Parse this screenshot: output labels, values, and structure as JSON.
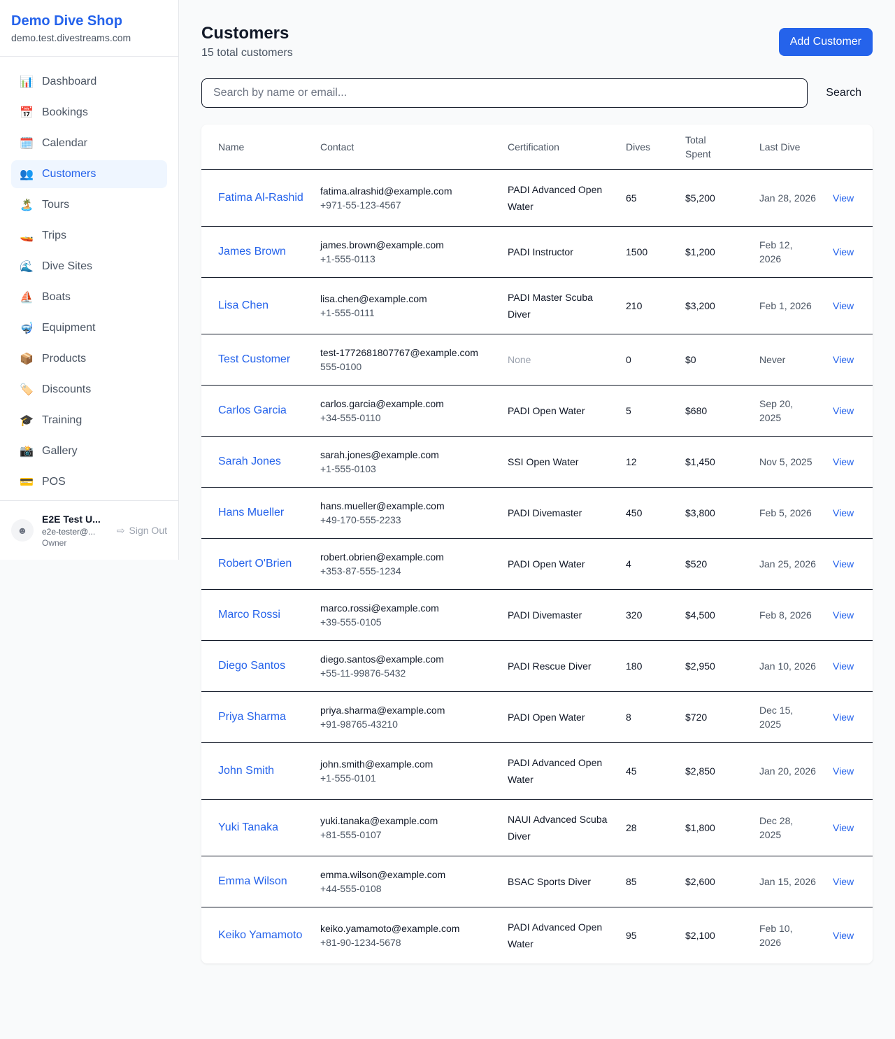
{
  "sidebar": {
    "brand": "Demo Dive Shop",
    "domain": "demo.test.divestreams.com",
    "items": [
      {
        "label": "Dashboard",
        "icon": "📊"
      },
      {
        "label": "Bookings",
        "icon": "📅"
      },
      {
        "label": "Calendar",
        "icon": "🗓️"
      },
      {
        "label": "Customers",
        "icon": "👥",
        "active": true
      },
      {
        "label": "Tours",
        "icon": "🏝️"
      },
      {
        "label": "Trips",
        "icon": "🚤"
      },
      {
        "label": "Dive Sites",
        "icon": "🌊"
      },
      {
        "label": "Boats",
        "icon": "⛵"
      },
      {
        "label": "Equipment",
        "icon": "🤿"
      },
      {
        "label": "Products",
        "icon": "📦"
      },
      {
        "label": "Discounts",
        "icon": "🏷️"
      },
      {
        "label": "Training",
        "icon": "🎓"
      },
      {
        "label": "Gallery",
        "icon": "📸"
      },
      {
        "label": "POS",
        "icon": "💳"
      }
    ],
    "user": {
      "name": "E2E Test U...",
      "email": "e2e-tester@...",
      "role": "Owner",
      "sign_out": "Sign Out"
    }
  },
  "header": {
    "title": "Customers",
    "subtitle": "15 total customers",
    "add_label": "Add Customer"
  },
  "search": {
    "placeholder": "Search by name or email...",
    "button": "Search"
  },
  "table": {
    "columns": [
      "Name",
      "Contact",
      "Certification",
      "Dives",
      "Total Spent",
      "Last Dive",
      ""
    ],
    "rows": [
      [
        "Fatima Al-Rashid",
        "fatima.alrashid@example.com",
        "+971-55-123-4567",
        "PADI Advanced Open Water",
        "65",
        "$5,200",
        "Jan 28, 2026"
      ],
      [
        "James Brown",
        "james.brown@example.com",
        "+1-555-0113",
        "PADI Instructor",
        "1500",
        "$1,200",
        "Feb 12, 2026"
      ],
      [
        "Lisa Chen",
        "lisa.chen@example.com",
        "+1-555-0111",
        "PADI Master Scuba Diver",
        "210",
        "$3,200",
        "Feb 1, 2026"
      ],
      [
        "Test Customer",
        "test-1772681807767@example.com",
        "555-0100",
        "None",
        "0",
        "$0",
        "Never"
      ],
      [
        "Carlos Garcia",
        "carlos.garcia@example.com",
        "+34-555-0110",
        "PADI Open Water",
        "5",
        "$680",
        "Sep 20, 2025"
      ],
      [
        "Sarah Jones",
        "sarah.jones@example.com",
        "+1-555-0103",
        "SSI Open Water",
        "12",
        "$1,450",
        "Nov 5, 2025"
      ],
      [
        "Hans Mueller",
        "hans.mueller@example.com",
        "+49-170-555-2233",
        "PADI Divemaster",
        "450",
        "$3,800",
        "Feb 5, 2026"
      ],
      [
        "Robert O'Brien",
        "robert.obrien@example.com",
        "+353-87-555-1234",
        "PADI Open Water",
        "4",
        "$520",
        "Jan 25, 2026"
      ],
      [
        "Marco Rossi",
        "marco.rossi@example.com",
        "+39-555-0105",
        "PADI Divemaster",
        "320",
        "$4,500",
        "Feb 8, 2026"
      ],
      [
        "Diego Santos",
        "diego.santos@example.com",
        "+55-11-99876-5432",
        "PADI Rescue Diver",
        "180",
        "$2,950",
        "Jan 10, 2026"
      ],
      [
        "Priya Sharma",
        "priya.sharma@example.com",
        "+91-98765-43210",
        "PADI Open Water",
        "8",
        "$720",
        "Dec 15, 2025"
      ],
      [
        "John Smith",
        "john.smith@example.com",
        "+1-555-0101",
        "PADI Advanced Open Water",
        "45",
        "$2,850",
        "Jan 20, 2026"
      ],
      [
        "Yuki Tanaka",
        "yuki.tanaka@example.com",
        "+81-555-0107",
        "NAUI Advanced Scuba Diver",
        "28",
        "$1,800",
        "Dec 28, 2025"
      ],
      [
        "Emma Wilson",
        "emma.wilson@example.com",
        "+44-555-0108",
        "BSAC Sports Diver",
        "85",
        "$2,600",
        "Jan 15, 2026"
      ],
      [
        "Keiko Yamamoto",
        "keiko.yamamoto@example.com",
        "+81-90-1234-5678",
        "PADI Advanced Open Water",
        "95",
        "$2,100",
        "Feb 10, 2026"
      ]
    ],
    "view_label": "View"
  },
  "colors": {
    "accent": "#2563eb",
    "active_bg": "#eff6ff"
  }
}
